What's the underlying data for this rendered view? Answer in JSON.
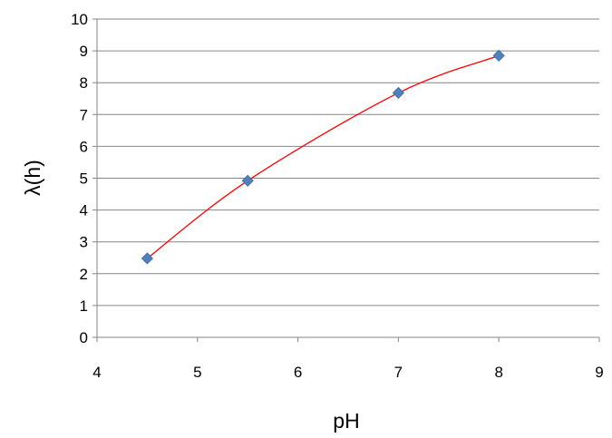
{
  "chart_data": {
    "type": "scatter",
    "title": "",
    "xlabel": "pH",
    "ylabel": "λ(h)",
    "xlim": [
      4,
      9
    ],
    "ylim": [
      0,
      10
    ],
    "xticks": [
      "4",
      "5",
      "6",
      "7",
      "8",
      "9"
    ],
    "yticks": [
      "0",
      "1",
      "2",
      "3",
      "4",
      "5",
      "6",
      "7",
      "8",
      "9",
      "10"
    ],
    "grid": "horizontal",
    "legend": "none",
    "series": [
      {
        "x": [
          4.5,
          5.5,
          7,
          8
        ],
        "y": [
          2.48,
          4.92,
          7.68,
          8.85
        ],
        "marker": "diamond",
        "marker_color": "#4F81BD",
        "line": "smooth",
        "line_color": "#FF0000"
      }
    ]
  }
}
